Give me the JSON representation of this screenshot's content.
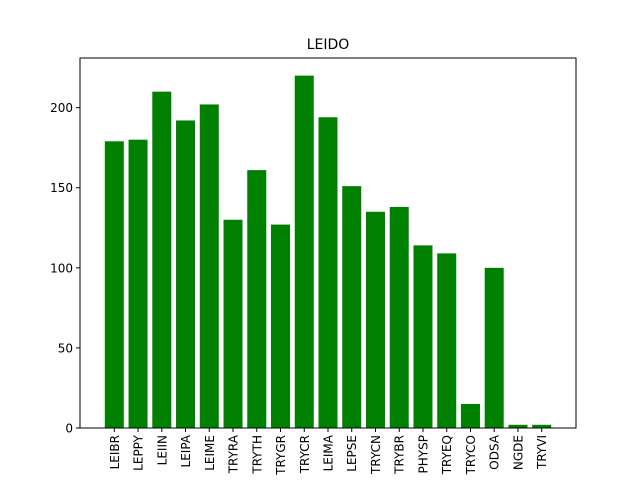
{
  "chart_data": {
    "type": "bar",
    "title": "LEIDO",
    "xlabel": "",
    "ylabel": "",
    "categories": [
      "LEIBR",
      "LEPPY",
      "LEIIN",
      "LEIPA",
      "LEIME",
      "TRYRA",
      "TRYTH",
      "TRYGR",
      "TRYCR",
      "LEIMA",
      "LEPSE",
      "TRYCN",
      "TRYBR",
      "PHYSP",
      "TRYEQ",
      "TRYCO",
      "ODSA",
      "NGDE",
      "TRYVI"
    ],
    "values": [
      179,
      180,
      210,
      192,
      202,
      130,
      161,
      127,
      220,
      194,
      151,
      135,
      138,
      114,
      109,
      15,
      100,
      2,
      2
    ],
    "ylim": [
      0,
      231
    ],
    "yticks": [
      0,
      50,
      100,
      150,
      200
    ],
    "bar_color": "#008000",
    "grid": false,
    "legend": "none"
  }
}
